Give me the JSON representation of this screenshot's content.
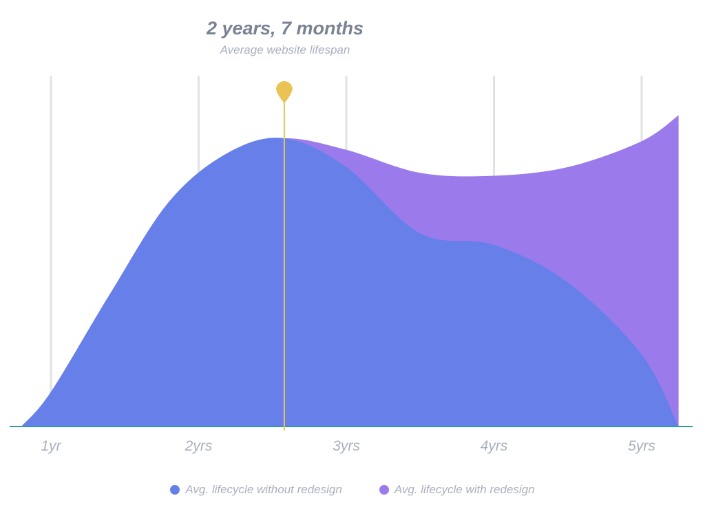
{
  "chart_data": {
    "type": "area",
    "title": "2 years, 7 months",
    "subtitle": "Average website lifespan",
    "xlabel": "",
    "ylabel": "",
    "x_ticks": [
      1,
      2,
      3,
      4,
      5
    ],
    "x_tick_labels": [
      "1yr",
      "2yrs",
      "3yrs",
      "4yrs",
      "5yrs"
    ],
    "xlim": [
      0.75,
      5.3
    ],
    "ylim": [
      0,
      100
    ],
    "grid": "vertical",
    "series": [
      {
        "name": "Avg. lifecycle without redesign",
        "color": "#677fe9",
        "x": [
          0.8,
          1.0,
          1.4,
          1.8,
          2.2,
          2.58,
          3.0,
          3.5,
          4.0,
          4.5,
          5.0,
          5.25
        ],
        "values": [
          0,
          12,
          46,
          78,
          95,
          100,
          90,
          67,
          63,
          50,
          25,
          0
        ]
      },
      {
        "name": "Avg. lifecycle with redesign",
        "color": "#9b7beb",
        "x": [
          0.8,
          1.0,
          1.4,
          1.8,
          2.2,
          2.58,
          3.0,
          3.5,
          4.0,
          4.5,
          5.0,
          5.25
        ],
        "values": [
          0,
          12,
          46,
          78,
          95,
          100,
          96,
          88,
          87,
          90,
          99,
          108
        ]
      }
    ],
    "marker": {
      "x": 2.58,
      "label": "2 years, 7 months",
      "color": "#e9c454"
    }
  },
  "legend": [
    {
      "label": "Avg. lifecycle without redesign",
      "color": "#677fe9"
    },
    {
      "label": "Avg. lifecycle with redesign",
      "color": "#9b7beb"
    }
  ]
}
